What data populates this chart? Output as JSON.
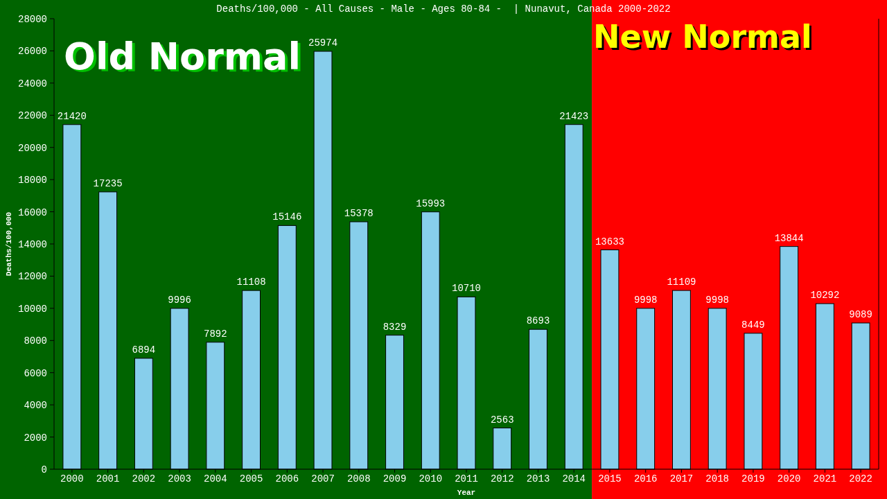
{
  "chart_data": {
    "type": "bar",
    "title": "Deaths/100,000 - All Causes - Male - Ages 80-84 -  | Nunavut, Canada 2000-2022",
    "xlabel": "Year",
    "ylabel": "Deaths/100,000",
    "categories": [
      "2000",
      "2001",
      "2002",
      "2003",
      "2004",
      "2005",
      "2006",
      "2007",
      "2008",
      "2009",
      "2010",
      "2011",
      "2012",
      "2013",
      "2014",
      "2015",
      "2016",
      "2017",
      "2018",
      "2019",
      "2020",
      "2021",
      "2022"
    ],
    "values": [
      21420,
      17235,
      6894,
      9996,
      7892,
      11108,
      15146,
      25974,
      15378,
      8329,
      15993,
      10710,
      2563,
      8693,
      21423,
      13633,
      9998,
      11109,
      9998,
      8449,
      13844,
      10292,
      9089
    ],
    "color": "#87ceeb",
    "data_labels": true,
    "ylim": [
      0,
      28000
    ],
    "yticks": [
      0,
      2000,
      4000,
      6000,
      8000,
      10000,
      12000,
      14000,
      16000,
      18000,
      20000,
      22000,
      24000,
      26000,
      28000
    ],
    "bands": [
      {
        "axis": "x",
        "from": "2000",
        "to": "2014",
        "label": "Old Normal",
        "color": "#006400"
      },
      {
        "axis": "x",
        "from": "2015",
        "to": "2022",
        "label": "New Normal",
        "color": "#ff0000"
      }
    ]
  }
}
